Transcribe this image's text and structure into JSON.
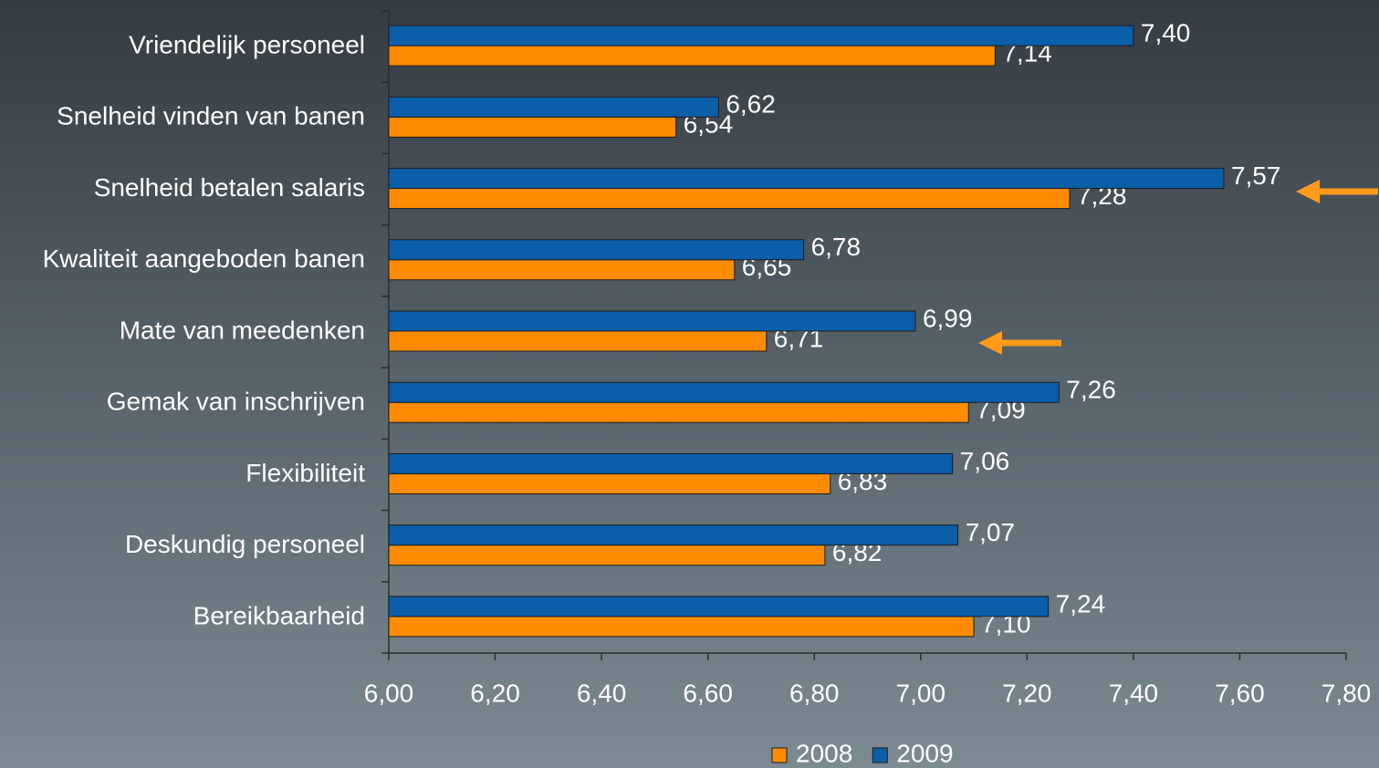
{
  "chart_data": {
    "type": "bar",
    "orientation": "horizontal",
    "categories": [
      "Vriendelijk personeel",
      "Snelheid vinden van banen",
      "Snelheid betalen salaris",
      "Kwaliteit aangeboden banen",
      "Mate van meedenken",
      "Gemak van inschrijven",
      "Flexibiliteit",
      "Deskundig personeel",
      "Bereikbaarheid"
    ],
    "series": [
      {
        "name": "2008",
        "color": "#ff8c00",
        "values": [
          7.14,
          6.54,
          7.28,
          6.65,
          6.71,
          7.09,
          6.83,
          6.82,
          7.1
        ],
        "value_labels": [
          "7,14",
          "6,54",
          "7,28",
          "6,65",
          "6,71",
          "7,09",
          "6,83",
          "6,82",
          "7,10"
        ]
      },
      {
        "name": "2009",
        "color": "#0b5ea8",
        "values": [
          7.4,
          6.62,
          7.57,
          6.78,
          6.99,
          7.26,
          7.06,
          7.07,
          7.24
        ],
        "value_labels": [
          "7,40",
          "6,62",
          "7,57",
          "6,78",
          "6,99",
          "7,26",
          "7,06",
          "7,07",
          "7,24"
        ]
      }
    ],
    "xlim": [
      6.0,
      7.8
    ],
    "xticks": [
      {
        "value": 6.0,
        "label": "6,00"
      },
      {
        "value": 6.2,
        "label": "6,20"
      },
      {
        "value": 6.4,
        "label": "6,40"
      },
      {
        "value": 6.6,
        "label": "6,60"
      },
      {
        "value": 6.8,
        "label": "6,80"
      },
      {
        "value": 7.0,
        "label": "7,00"
      },
      {
        "value": 7.2,
        "label": "7,20"
      },
      {
        "value": 7.4,
        "label": "7,40"
      },
      {
        "value": 7.6,
        "label": "7,60"
      },
      {
        "value": 7.8,
        "label": "7,80"
      }
    ],
    "grid": false,
    "legend": "bottom"
  }
}
